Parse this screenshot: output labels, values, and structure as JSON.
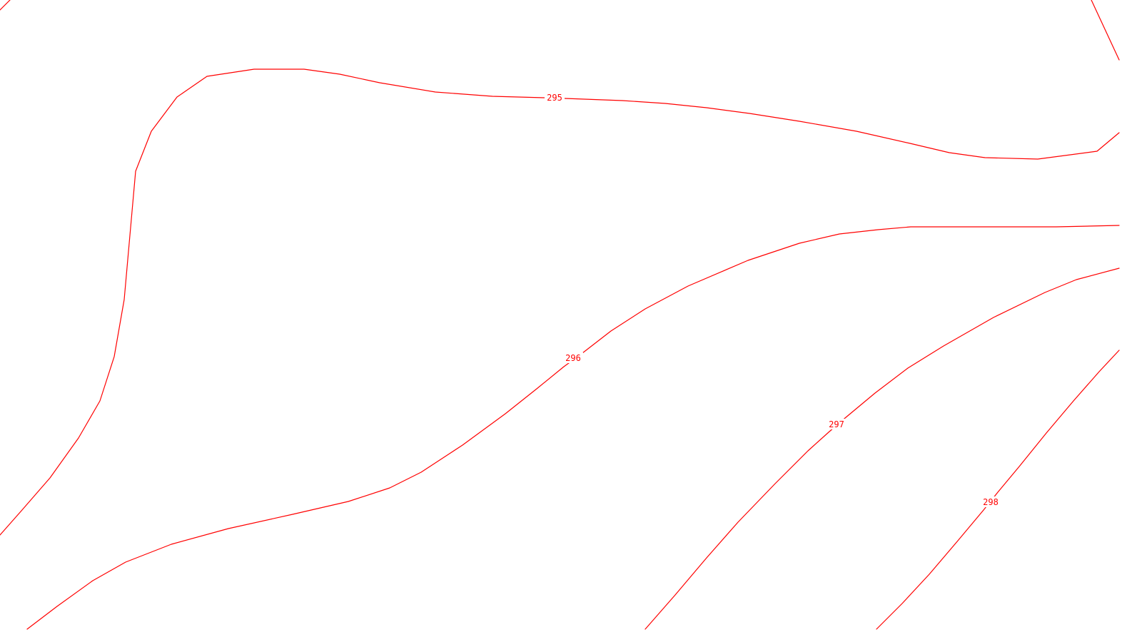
{
  "map": {
    "line_color": "#ff0000",
    "background_color": "#ffffff",
    "contours": [
      {
        "elevation_label": "295"
      },
      {
        "elevation_label": "296"
      },
      {
        "elevation_label": "297"
      },
      {
        "elevation_label": "298"
      }
    ]
  }
}
